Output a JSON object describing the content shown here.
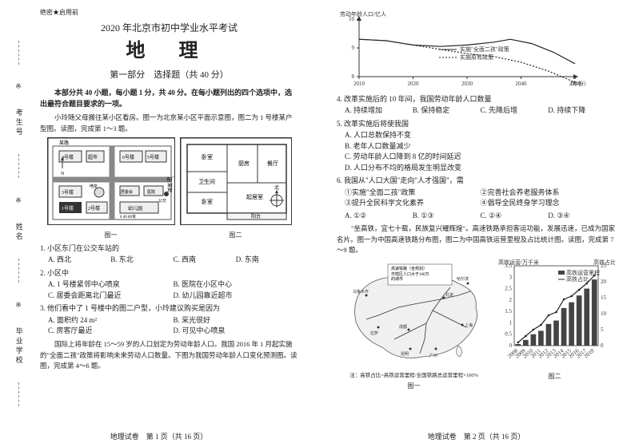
{
  "header": {
    "confidential": "绝密★启用前",
    "exam_title": "2020 年北京市初中学业水平考试",
    "subject": "地 理",
    "section_title": "第一部分　选择题（共 40 分）",
    "instructions": "本部分共 40 小题，每小题 1 分，共 40 分。在每小题列出的四个选项中，选出最符合题目要求的一项。"
  },
  "side": {
    "labels": [
      "考生号",
      "姓名",
      "毕业学校"
    ],
    "divider_symbol": "※"
  },
  "left": {
    "context1": "小玲随父母搬往某小区看房。图一为北京某小区平面示意图，图二为 1 号楼某户型图。读图，完成第 1～3 题。",
    "fig1_label": "图一",
    "fig2_label": "图二",
    "map": {
      "roads": [
        "某路",
        "某街"
      ],
      "gate": "东门",
      "buildings": [
        "1号楼",
        "2号楼",
        "3号楼",
        "4号楼",
        "5号楼",
        "6号楼"
      ],
      "poi": [
        "居委会",
        "幼儿园",
        "医院",
        "公交"
      ],
      "compass": "N",
      "scale": "0 40 80米"
    },
    "floorplan": {
      "rooms": [
        "卧室",
        "卧室",
        "卫生间",
        "餐厅",
        "起居室",
        "厨房",
        "阳台"
      ],
      "compass": "北"
    },
    "q1": {
      "stem": "1. 小区东门在公交车站的",
      "opts": [
        "A. 西北",
        "B. 东北",
        "C. 西南",
        "D. 东南"
      ]
    },
    "q2": {
      "stem": "2. 小区中",
      "opts": [
        "A. 1 号楼紧邻中心喷泉",
        "B. 医院在小区中心",
        "C. 居委会距离北门最近",
        "D. 幼儿园靠近超市"
      ]
    },
    "q3": {
      "stem": "3. 他们看中了 1 号楼中的图二户型，小玲建议购买是因为",
      "opts": [
        "A. 面积约 24 m²",
        "B. 采光很好",
        "C. 房客厅最近",
        "D. 可见中心喷泉"
      ]
    },
    "context2": "国际上将年龄在 15～59 岁的人口划定为劳动年龄人口。我国 2016 年 1 月起实施的\"全面二孩\"政策将影响未来劳动人口数量。下图为我国劳动年龄人口变化预测图。读图，完成第 4～6 题。",
    "footer": "地理试卷　第 1 页（共 16 页）"
  },
  "right": {
    "chart1": {
      "ylabel": "劳动年龄人口/亿人",
      "ylim": [
        8,
        10
      ],
      "yticks": [
        8,
        9,
        10
      ],
      "xlim": [
        2010,
        2050
      ],
      "xticks": [
        2010,
        2020,
        2030,
        2040,
        2050
      ],
      "xlabel": "（年份）",
      "series": [
        {
          "name": "实施\"全面二孩\"政策",
          "style": "solid",
          "data": [
            [
              2010,
              9.3
            ],
            [
              2015,
              9.25
            ],
            [
              2020,
              9.1
            ],
            [
              2025,
              9.05
            ],
            [
              2030,
              9.1
            ],
            [
              2035,
              9.2
            ],
            [
              2038,
              9.3
            ],
            [
              2042,
              9.15
            ],
            [
              2046,
              8.85
            ],
            [
              2050,
              8.45
            ]
          ]
        },
        {
          "name": "实施原有政策",
          "style": "dot",
          "data": [
            [
              2010,
              9.3
            ],
            [
              2015,
              9.25
            ],
            [
              2020,
              9.1
            ],
            [
              2025,
              8.95
            ],
            [
              2030,
              8.8
            ],
            [
              2035,
              8.7
            ],
            [
              2040,
              8.5
            ],
            [
              2045,
              8.2
            ],
            [
              2050,
              7.8
            ]
          ]
        }
      ],
      "colors": {
        "axis": "#333333",
        "line": "#222222",
        "bg": "#ffffff"
      }
    },
    "q4": {
      "stem": "4. 改革实施后的 10 年间，我国劳动年龄人口数量",
      "opts": [
        "A. 持续增加",
        "B. 保持稳定",
        "C. 先降后增",
        "D. 持续下降"
      ]
    },
    "q5": {
      "stem": "5. 改革实施后将使我国",
      "opts": [
        "A. 人口总数保持不变",
        "B. 老年人口数量减少",
        "C. 劳动年龄人口降到 8 亿的时间延迟",
        "D. 人口分布不均的格局发生明显改变"
      ]
    },
    "q6": {
      "stem": "6. 我国从\"人口大国\"走向\"人才强国\"，需",
      "circled": [
        "①实施\"全面二孩\"政策",
        "②完善社会养老服务体系",
        "③提升全民科学文化素养",
        "④倡导全民终身学习理念"
      ],
      "opts": [
        "A. ①②",
        "B. ①③",
        "C. ②④",
        "D. ③④"
      ]
    },
    "context3": "\"坐高铁，宜七十载，民族复兴耀辉煌\"。高速铁路承担客运功能，发展迅速，已成为国家名片。图一为中国高速铁路分布图，图二为中国高铁运营里程及占比统计图。读图，完成第 7～9 题。",
    "map2": {
      "title_box": [
        "高速铁路（含规划）",
        "市辖区人口大于100万",
        "的城市",
        "以上的城市"
      ],
      "cities": [
        "乌鲁木齐",
        "拉萨",
        "成都",
        "昆明",
        "广州",
        "上海",
        "北京",
        "哈尔滨"
      ],
      "caption_note": "注：高铁占比=高铁运营里程/全国铁路总运营里程×100%"
    },
    "chart2": {
      "ylabel_left": "高铁运营/万千米",
      "ylabel_right": "高铁占比/%",
      "left_lim": [
        0,
        3.5
      ],
      "left_ticks": [
        0,
        0.5,
        1,
        1.5,
        2,
        2.5,
        3,
        3.5
      ],
      "right_lim": [
        0,
        25
      ],
      "right_ticks": [
        0,
        5,
        10,
        15,
        20,
        25
      ],
      "x_categories": [
        "2008",
        "2009",
        "2010",
        "2011",
        "2012",
        "2013",
        "2014",
        "2015",
        "2016",
        "2017",
        "2018"
      ],
      "bars": [
        0.07,
        0.25,
        0.5,
        0.65,
        0.95,
        1.1,
        1.65,
        1.9,
        2.2,
        2.5,
        2.9
      ],
      "line": [
        1,
        3,
        5,
        6.5,
        9.5,
        10.5,
        14.5,
        15.5,
        17.5,
        19.5,
        22
      ],
      "legend": [
        "高铁运营里程",
        "高铁占比"
      ],
      "colors": {
        "bar": "#444444",
        "line": "#222222",
        "bg": "#ffffff",
        "axis": "#333333"
      }
    },
    "fig1_label": "图一",
    "fig2_label": "图二",
    "footer": "地理试卷　第 2 页（共 16 页）"
  }
}
